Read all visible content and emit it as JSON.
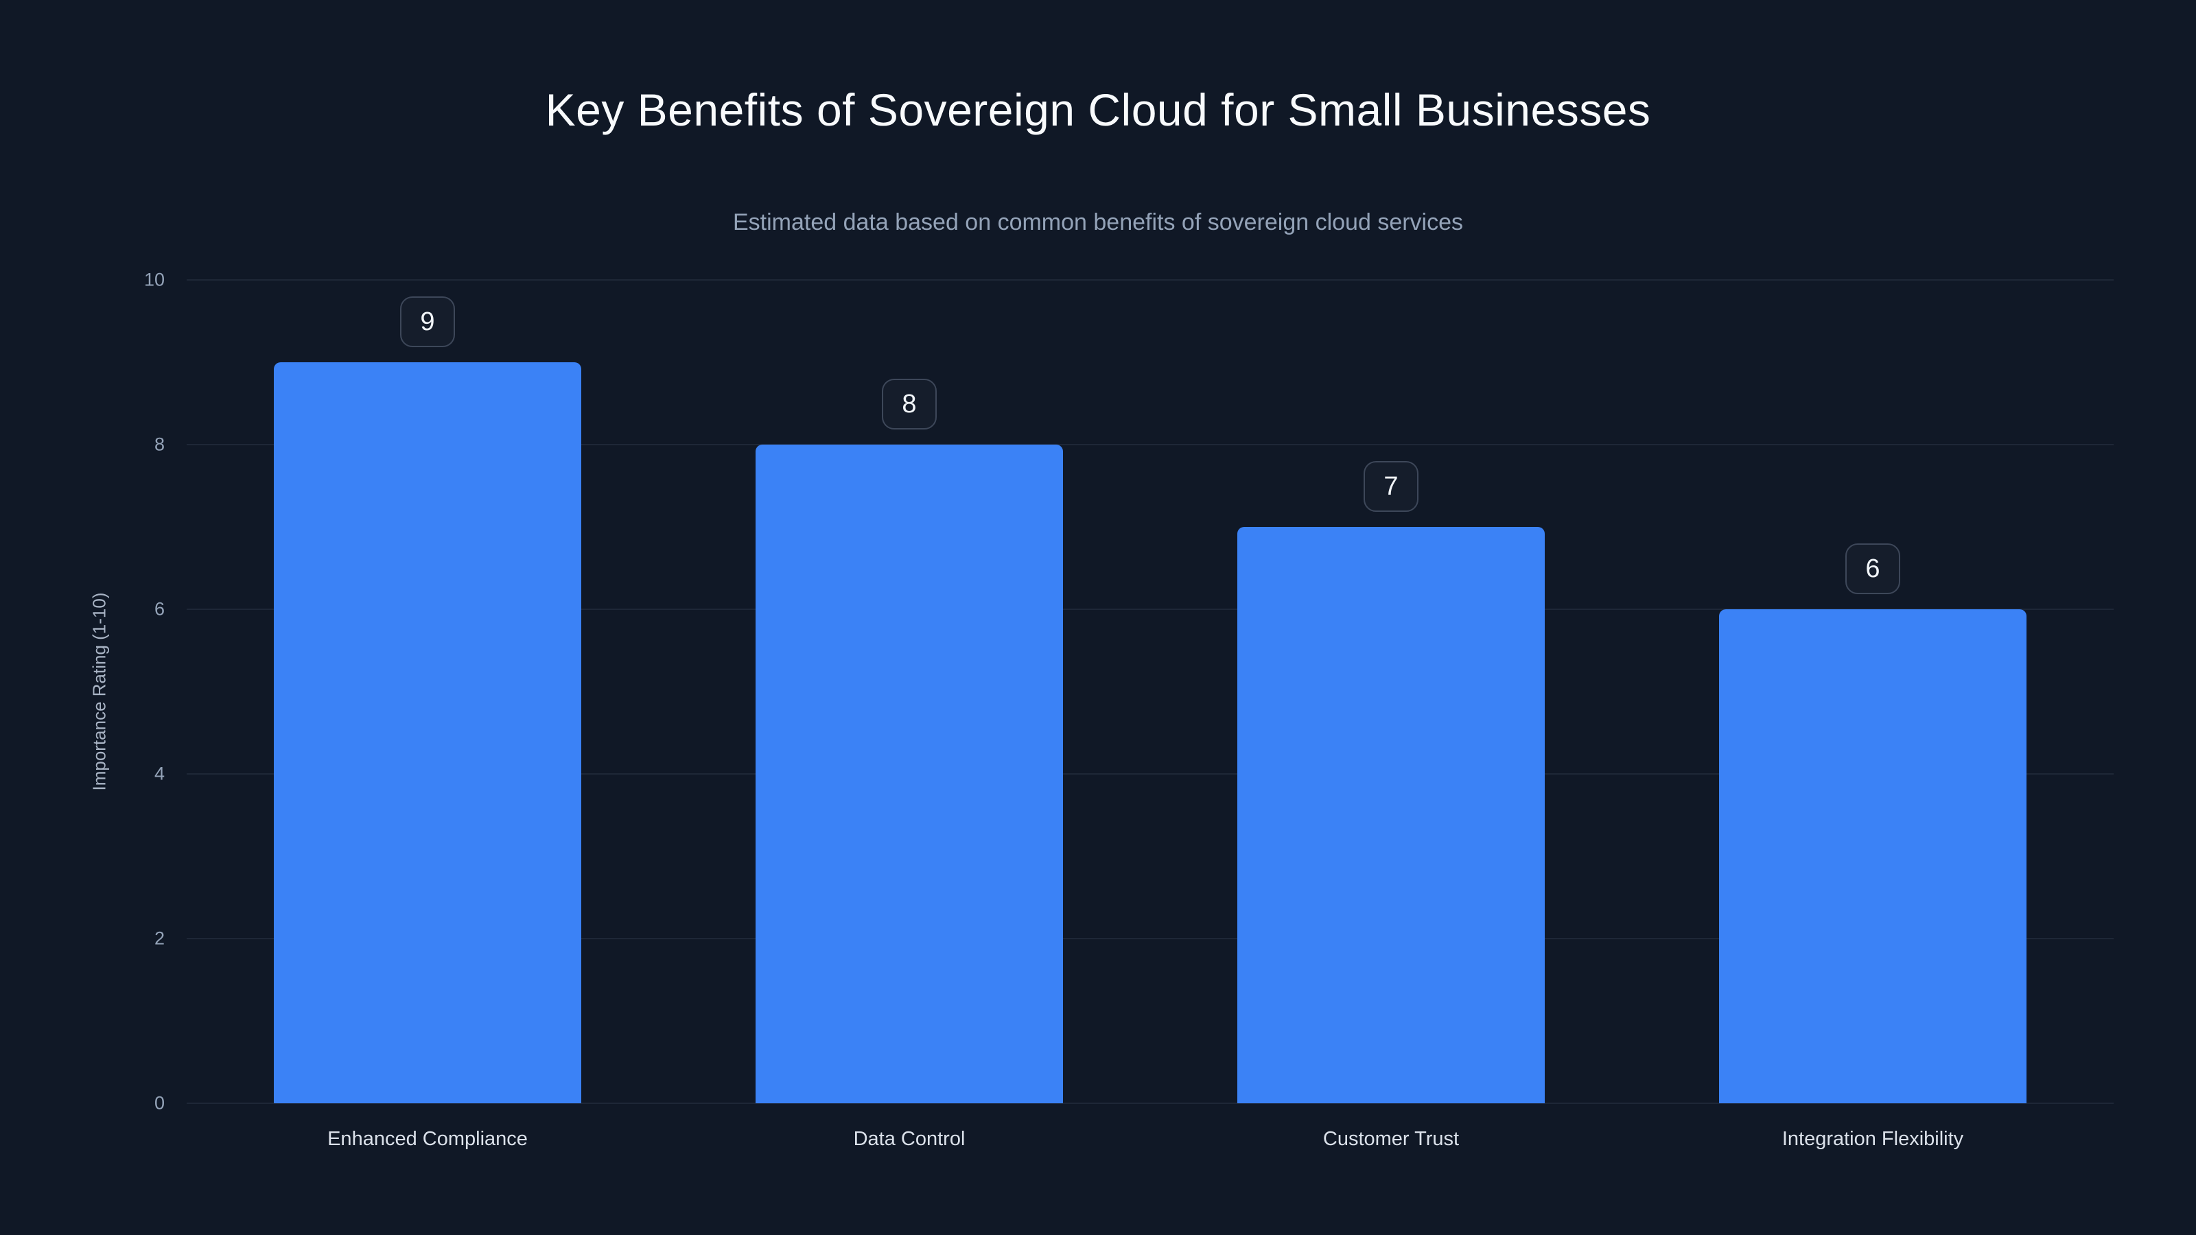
{
  "title": "Key Benefits of Sovereign Cloud for Small Businesses",
  "subtitle": "Estimated data based on common benefits of sovereign cloud services",
  "chart_data": {
    "type": "bar",
    "title": "Key Benefits of Sovereign Cloud for Small Businesses",
    "subtitle": "Estimated data based on common benefits of sovereign cloud services",
    "categories": [
      "Enhanced Compliance",
      "Data Control",
      "Customer Trust",
      "Integration Flexibility"
    ],
    "values": [
      9,
      8,
      7,
      6
    ],
    "value_labels": [
      "9",
      "8",
      "7",
      "6"
    ],
    "xlabel": "",
    "ylabel": "Importance Rating (1-10)",
    "ylim": [
      0,
      10
    ],
    "yticks": [
      0,
      2,
      4,
      6,
      8,
      10
    ],
    "grid": true,
    "legend": false,
    "bar_color": "#3b82f6"
  },
  "colors": {
    "background": "#101826",
    "bar": "#3b82f6",
    "gridline": "#1e2737",
    "title_text": "#f8fafc",
    "subtitle_text": "#94a3b8",
    "tick_text": "#94a3b8",
    "category_text": "#dbe1ea",
    "badge_border": "#3d4759",
    "badge_text": "#f1f5f9"
  }
}
